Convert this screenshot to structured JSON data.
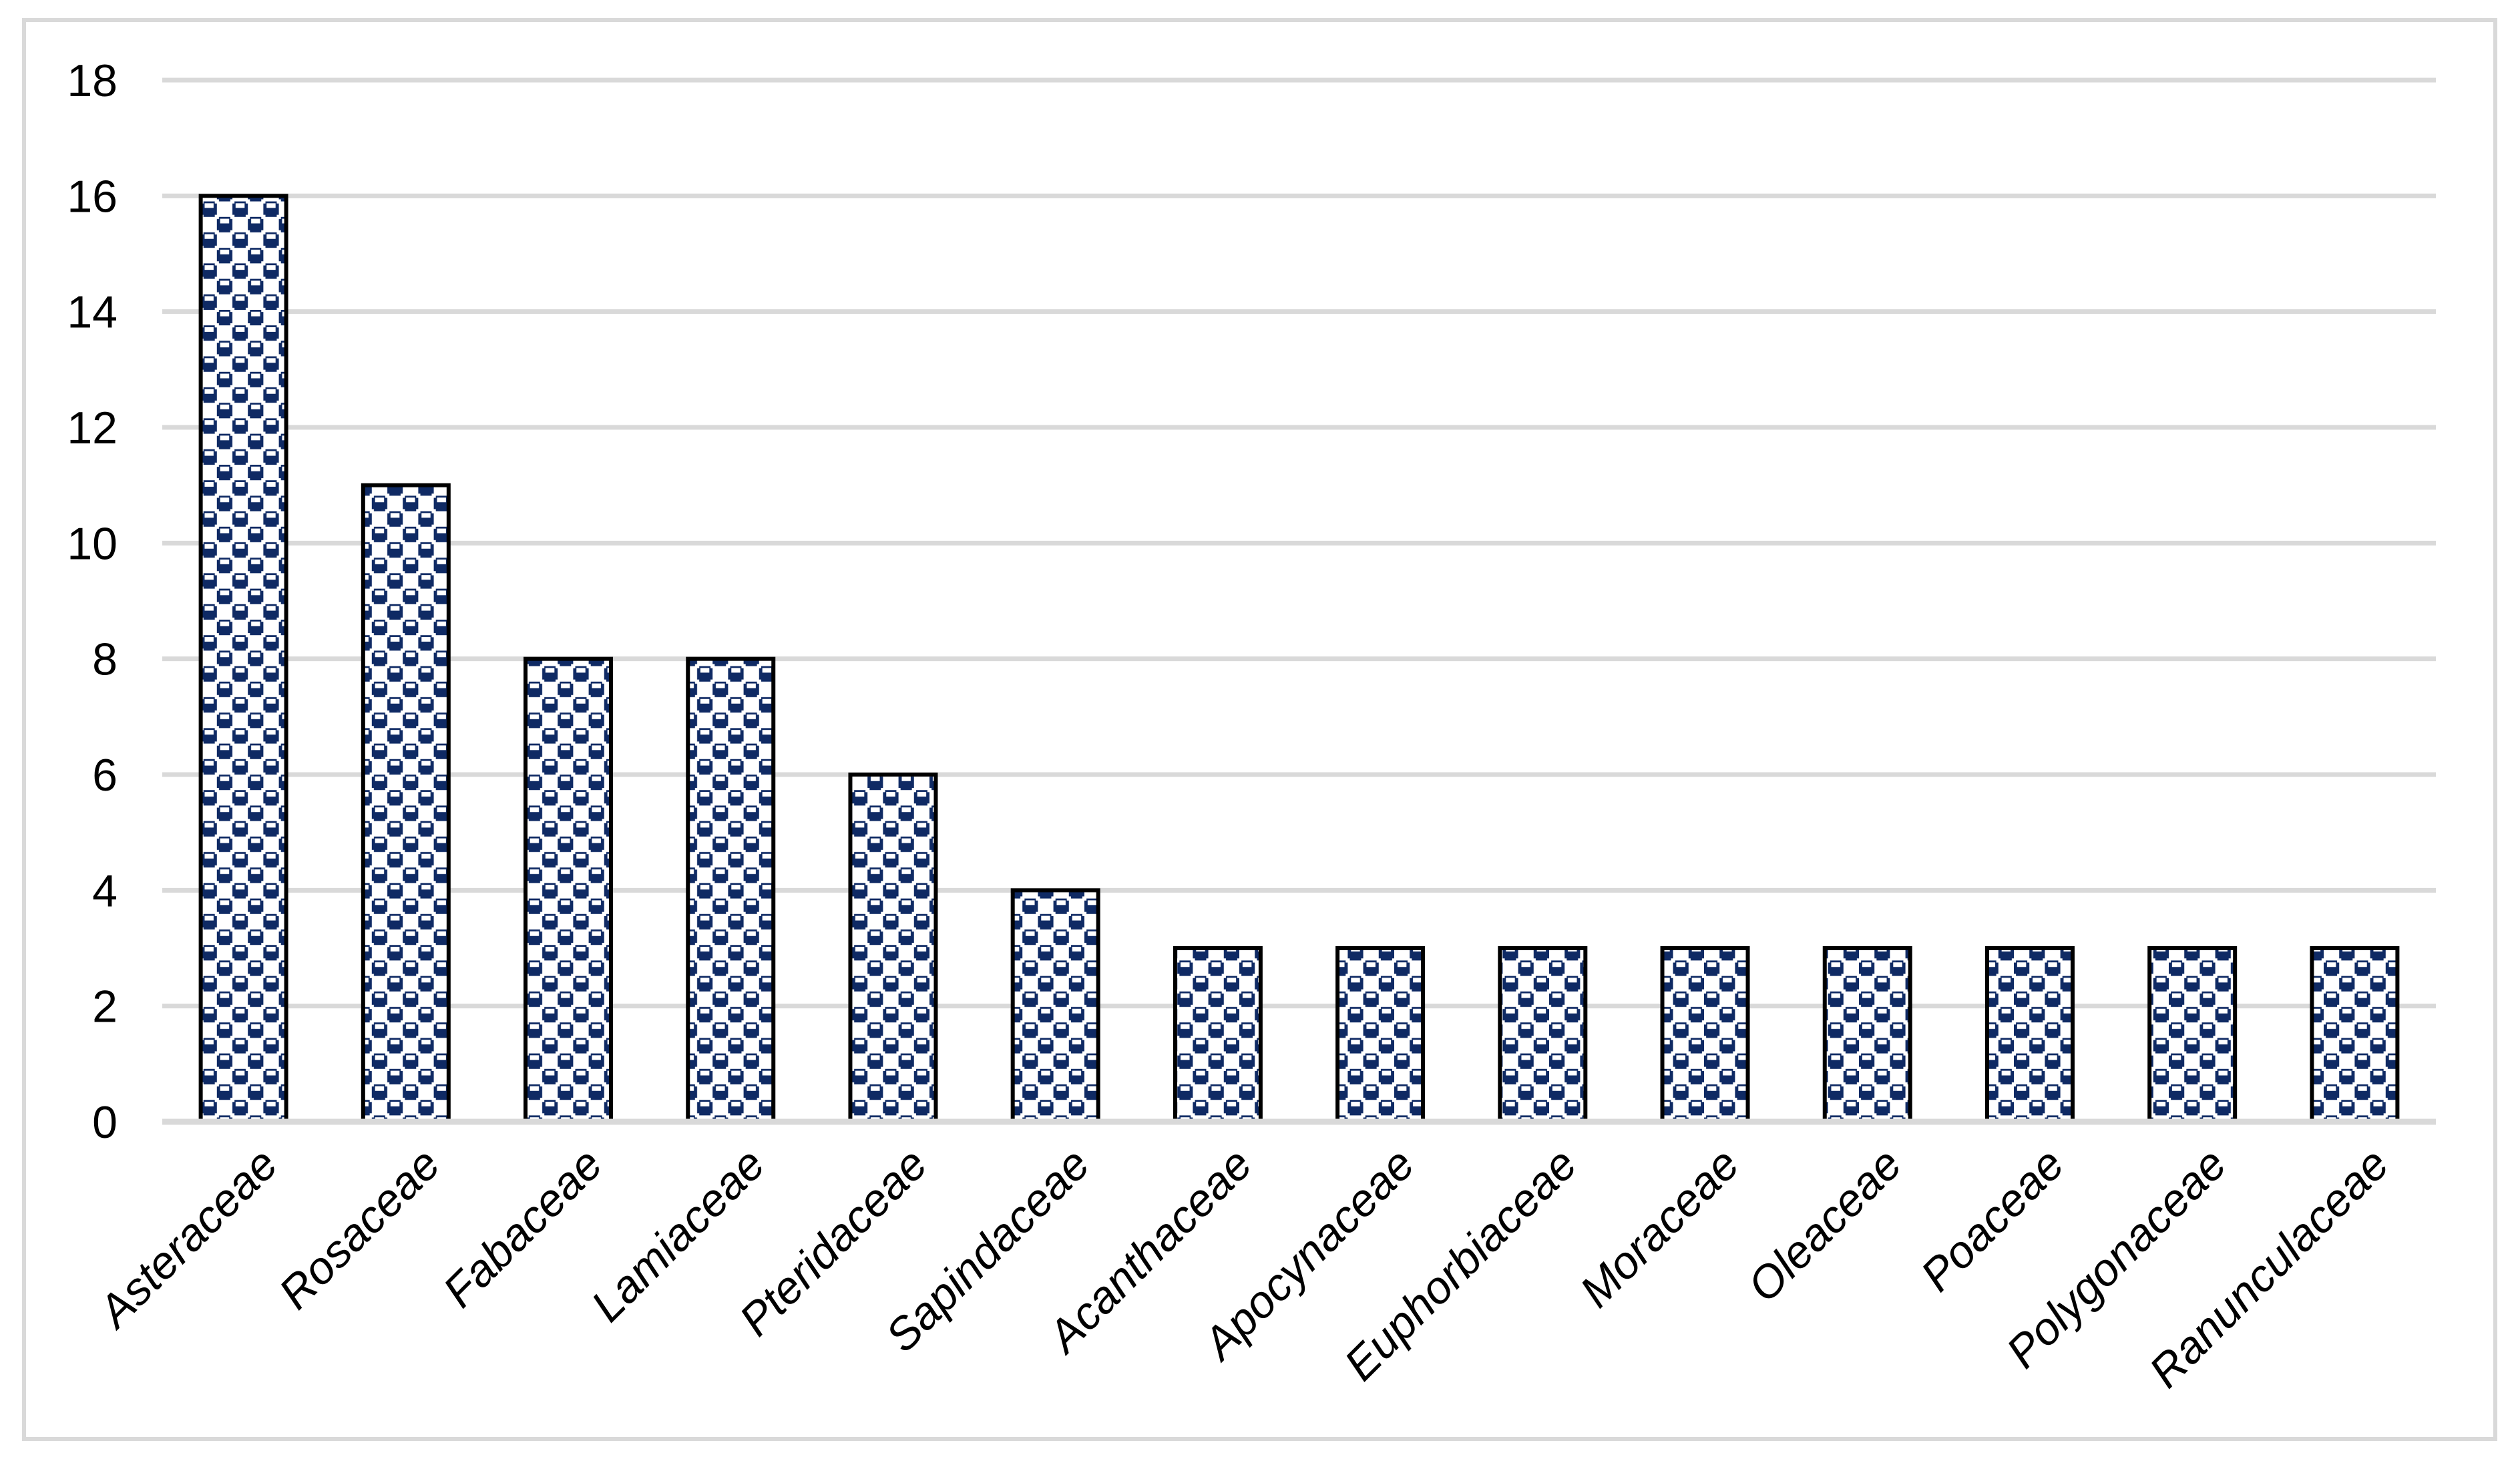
{
  "chart_data": {
    "type": "bar",
    "title": "",
    "xlabel": "",
    "ylabel": "",
    "categories": [
      "Asteraceae",
      "Rosaceae",
      "Fabaceae",
      "Lamiaceae",
      "Pteridaceae",
      "Sapindaceae",
      "Acanthaceae",
      "Apocynaceae",
      "Euphorbiaceae",
      "Moraceae",
      "Oleaceae",
      "Poaceae",
      "Polygonaceae",
      "Ranunculaceae"
    ],
    "values": [
      16,
      11,
      8,
      8,
      6,
      4,
      3,
      3,
      3,
      3,
      3,
      3,
      3,
      3
    ],
    "ylim": [
      0,
      18
    ],
    "ytick_step": 2,
    "ytick_labels": [
      "0",
      "2",
      "4",
      "6",
      "8",
      "10",
      "12",
      "14",
      "16",
      "18"
    ],
    "grid": "on",
    "legend_position": "none",
    "bar_fill_style": "navy-checker-divot-pattern",
    "category_label_rotation_deg": -45,
    "category_label_style": "italic",
    "colors": {
      "bar_pattern_navy": "#0F2A64",
      "bar_pattern_bg": "#FFFFFF",
      "bar_outline": "#000000",
      "gridline": "#D9D9D9",
      "axis_line": "#D9D9D9",
      "frame_border": "#D9D9D9",
      "text": "#000000",
      "background": "#FFFFFF"
    }
  }
}
